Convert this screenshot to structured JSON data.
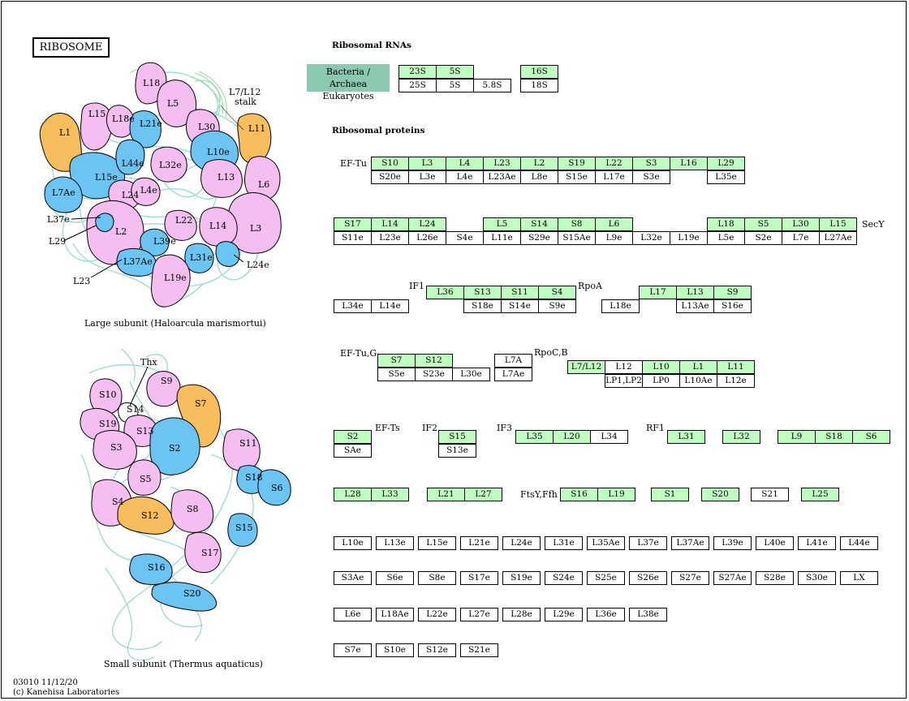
{
  "map": {
    "title": "RIBOSOME",
    "footer_id": "03010 11/12/20",
    "copyright": "(c) Kanehisa Laboratories",
    "large_subunit_caption": "Large subunit (Haloarcula marismortui)",
    "small_subunit_caption": "Small subunit (Thermus aquaticus)"
  },
  "colors": {
    "present": "#bfffbf",
    "absent": "#ffffff",
    "legend": "#8bc9b0",
    "pink": "#f4bff0",
    "blue": "#6cc4f2",
    "orange": "#f8bd5c"
  },
  "rna": {
    "heading": "Ribosomal RNAs",
    "legend_line1": "Bacteria / Archaea",
    "legend_line2": "Eukaryotes",
    "bacteria": [
      "23S",
      "5S",
      "16S"
    ],
    "eukaryote": [
      "25S",
      "5S",
      "5.8S",
      "18S"
    ]
  },
  "proteins": {
    "heading": "Ribosomal proteins",
    "labels": [
      "EF-Tu",
      "SecY",
      "IF1",
      "RpoA",
      "EF-Tu,G",
      "RpoC,B",
      "EF-Ts",
      "IF2",
      "IF3",
      "RF1",
      "FtsY,Ffh"
    ],
    "row1_top": [
      "S10",
      "L3",
      "L4",
      "L23",
      "L2",
      "S19",
      "L22",
      "S3",
      "L16",
      "L29"
    ],
    "row1_bottom": [
      "S20e",
      "L3e",
      "L4e",
      "L23Ae",
      "L8e",
      "S15e",
      "L17e",
      "S3e",
      "L35e"
    ],
    "row2_top": [
      "S17",
      "L14",
      "L24",
      "L5",
      "S14",
      "S8",
      "L6",
      "L18",
      "S5",
      "L30",
      "L15"
    ],
    "row2_bottom": [
      "S11e",
      "L23e",
      "L26e",
      "S4e",
      "L11e",
      "S29e",
      "S15Ae",
      "L9e",
      "L32e",
      "L19e",
      "L5e",
      "S2e",
      "L7e",
      "L27Ae"
    ],
    "row3_top": [
      "L36",
      "S13",
      "S11",
      "S4",
      "L17",
      "L13",
      "S9"
    ],
    "row3_bottom": [
      "L34e",
      "L14e",
      "S18e",
      "S14e",
      "S9e",
      "L18e",
      "L13Ae",
      "S16e"
    ],
    "row4_top": [
      "S7",
      "S12",
      "L7A",
      "L7/L12",
      "L12",
      "L10",
      "L1",
      "L11"
    ],
    "row4_bottom": [
      "S5e",
      "S23e",
      "L30e",
      "L7Ae",
      "LP1,LP2",
      "LP0",
      "L10Ae",
      "L12e"
    ],
    "row5_top": [
      "S2",
      "S15",
      "L35",
      "L20",
      "L34",
      "L31",
      "L32",
      "L9",
      "S18",
      "S6"
    ],
    "row5_bottom": [
      "SAe",
      "S13e"
    ],
    "row6": [
      "L28",
      "L33",
      "L21",
      "L27",
      "S16",
      "L19",
      "S1",
      "S20",
      "S21",
      "L25"
    ],
    "euk1": [
      "L10e",
      "L13e",
      "L15e",
      "L21e",
      "L24e",
      "L31e",
      "L35Ae",
      "L37e",
      "L37Ae",
      "L39e",
      "L40e",
      "L41e",
      "L44e"
    ],
    "euk2": [
      "S3Ae",
      "S6e",
      "S8e",
      "S17e",
      "S19e",
      "S24e",
      "S25e",
      "S26e",
      "S27e",
      "S27Ae",
      "S28e",
      "S30e",
      "LX"
    ],
    "euk3": [
      "L6e",
      "L18Ae",
      "L22e",
      "L27e",
      "L28e",
      "L29e",
      "L36e",
      "L38e"
    ],
    "euk4": [
      "S7e",
      "S10e",
      "S12e",
      "S21e"
    ]
  },
  "structure_labels": {
    "large": [
      "L1",
      "L15",
      "L18",
      "L5",
      "L18e",
      "L21e",
      "L30",
      "L11",
      "L10e",
      "L15e",
      "L44e",
      "L32e",
      "L13",
      "L6",
      "L7Ae",
      "L24",
      "L4e",
      "L3",
      "L2",
      "L22",
      "L14",
      "L39e",
      "L37Ae",
      "L31e",
      "L19e"
    ],
    "large_callouts": [
      "L7/L12",
      "stalk",
      "L37e",
      "L29",
      "L23",
      "L24e"
    ],
    "small": [
      "S10",
      "S9",
      "S19",
      "S14",
      "S13",
      "S3",
      "S7",
      "S2",
      "S11",
      "S18",
      "S6",
      "S5",
      "S4",
      "S12",
      "S8",
      "S15",
      "S17",
      "S16",
      "S20"
    ],
    "small_callouts": [
      "Thx"
    ]
  }
}
